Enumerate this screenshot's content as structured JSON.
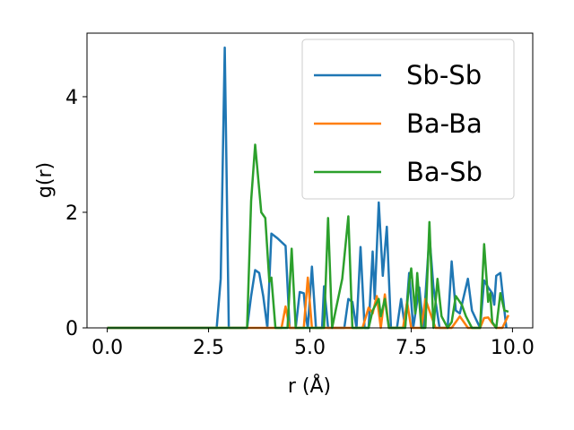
{
  "chart_data": {
    "type": "line",
    "xlabel": "r (Å)",
    "ylabel": "g(r)",
    "xlim": [
      -0.5,
      10.5
    ],
    "ylim": [
      0,
      5.1
    ],
    "xticks": [
      0.0,
      2.5,
      5.0,
      7.5,
      10.0
    ],
    "xtick_labels": [
      "0.0",
      "2.5",
      "5.0",
      "7.5",
      "10.0"
    ],
    "yticks": [
      0,
      2,
      4
    ],
    "ytick_labels": [
      "0",
      "2",
      "4"
    ],
    "grid": false,
    "legend_position": "top-right",
    "series": [
      {
        "name": "Sb-Sb",
        "color": "#1f77b4",
        "points": [
          [
            0.0,
            0
          ],
          [
            2.7,
            0
          ],
          [
            2.8,
            0.85
          ],
          [
            2.9,
            4.85
          ],
          [
            3.0,
            0
          ],
          [
            3.45,
            0
          ],
          [
            3.55,
            0.55
          ],
          [
            3.65,
            1.0
          ],
          [
            3.75,
            0.95
          ],
          [
            3.85,
            0.55
          ],
          [
            3.95,
            0
          ],
          [
            4.05,
            1.63
          ],
          [
            4.2,
            1.55
          ],
          [
            4.4,
            1.42
          ],
          [
            4.5,
            0
          ],
          [
            4.65,
            0
          ],
          [
            4.75,
            0.62
          ],
          [
            4.85,
            0.6
          ],
          [
            4.9,
            0.2
          ],
          [
            4.95,
            0
          ],
          [
            5.05,
            1.06
          ],
          [
            5.15,
            0
          ],
          [
            5.3,
            0
          ],
          [
            5.35,
            0.72
          ],
          [
            5.45,
            0
          ],
          [
            5.85,
            0
          ],
          [
            5.95,
            0.5
          ],
          [
            6.05,
            0.45
          ],
          [
            6.15,
            0
          ],
          [
            6.25,
            1.4
          ],
          [
            6.35,
            0
          ],
          [
            6.45,
            0
          ],
          [
            6.55,
            1.32
          ],
          [
            6.6,
            0.5
          ],
          [
            6.7,
            2.17
          ],
          [
            6.8,
            0.9
          ],
          [
            6.9,
            1.75
          ],
          [
            7.0,
            0
          ],
          [
            7.15,
            0
          ],
          [
            7.25,
            0.5
          ],
          [
            7.35,
            0
          ],
          [
            7.45,
            0.95
          ],
          [
            7.55,
            0
          ],
          [
            7.7,
            0.7
          ],
          [
            7.8,
            0
          ],
          [
            7.95,
            1.6
          ],
          [
            8.05,
            0.7
          ],
          [
            8.2,
            0
          ],
          [
            8.4,
            0
          ],
          [
            8.5,
            1.15
          ],
          [
            8.6,
            0.3
          ],
          [
            8.7,
            0.25
          ],
          [
            8.8,
            0.55
          ],
          [
            8.9,
            0.85
          ],
          [
            9.0,
            0.3
          ],
          [
            9.1,
            0.15
          ],
          [
            9.2,
            0
          ],
          [
            9.3,
            0.82
          ],
          [
            9.4,
            0.7
          ],
          [
            9.5,
            0.6
          ],
          [
            9.55,
            0.4
          ],
          [
            9.6,
            0.9
          ],
          [
            9.7,
            0.95
          ],
          [
            9.8,
            0.3
          ],
          [
            9.85,
            0
          ]
        ]
      },
      {
        "name": "Ba-Ba",
        "color": "#ff7f0e",
        "points": [
          [
            0.0,
            0
          ],
          [
            4.3,
            0
          ],
          [
            4.4,
            0.37
          ],
          [
            4.5,
            0
          ],
          [
            4.85,
            0
          ],
          [
            4.95,
            0.87
          ],
          [
            5.05,
            0
          ],
          [
            6.3,
            0
          ],
          [
            6.45,
            0.35
          ],
          [
            6.55,
            0.25
          ],
          [
            6.65,
            0.55
          ],
          [
            6.75,
            0
          ],
          [
            6.85,
            0.58
          ],
          [
            6.95,
            0
          ],
          [
            7.3,
            0
          ],
          [
            7.4,
            0.45
          ],
          [
            7.5,
            0
          ],
          [
            7.75,
            0
          ],
          [
            7.85,
            0.5
          ],
          [
            8.0,
            0.2
          ],
          [
            8.1,
            0
          ],
          [
            8.5,
            0
          ],
          [
            8.6,
            0.1
          ],
          [
            8.7,
            0.2
          ],
          [
            8.9,
            0
          ],
          [
            9.2,
            0
          ],
          [
            9.3,
            0.17
          ],
          [
            9.4,
            0.18
          ],
          [
            9.5,
            0.08
          ],
          [
            9.6,
            0
          ],
          [
            9.75,
            0
          ],
          [
            9.9,
            0.22
          ]
        ]
      },
      {
        "name": "Ba-Sb",
        "color": "#2ca02c",
        "points": [
          [
            0.0,
            0
          ],
          [
            3.45,
            0
          ],
          [
            3.55,
            2.2
          ],
          [
            3.65,
            3.17
          ],
          [
            3.8,
            2.0
          ],
          [
            3.9,
            1.9
          ],
          [
            4.0,
            0.8
          ],
          [
            4.05,
            0.87
          ],
          [
            4.15,
            0
          ],
          [
            4.45,
            0
          ],
          [
            4.55,
            1.37
          ],
          [
            4.65,
            0
          ],
          [
            5.35,
            0
          ],
          [
            5.45,
            1.9
          ],
          [
            5.55,
            0
          ],
          [
            5.65,
            0.35
          ],
          [
            5.8,
            0.85
          ],
          [
            5.95,
            1.93
          ],
          [
            6.05,
            0
          ],
          [
            6.45,
            0
          ],
          [
            6.55,
            0.3
          ],
          [
            6.7,
            0.5
          ],
          [
            6.75,
            0.2
          ],
          [
            6.85,
            0.5
          ],
          [
            6.95,
            0
          ],
          [
            7.35,
            0
          ],
          [
            7.45,
            0.78
          ],
          [
            7.5,
            1.03
          ],
          [
            7.6,
            0.25
          ],
          [
            7.65,
            0.95
          ],
          [
            7.75,
            0
          ],
          [
            7.85,
            0
          ],
          [
            7.95,
            1.83
          ],
          [
            8.05,
            0
          ],
          [
            8.15,
            0.85
          ],
          [
            8.25,
            0.2
          ],
          [
            8.4,
            0
          ],
          [
            8.5,
            0.1
          ],
          [
            8.6,
            0.55
          ],
          [
            8.75,
            0.4
          ],
          [
            8.85,
            0.2
          ],
          [
            9.0,
            0
          ],
          [
            9.2,
            0
          ],
          [
            9.3,
            1.45
          ],
          [
            9.4,
            0.45
          ],
          [
            9.45,
            0.6
          ],
          [
            9.5,
            0.1
          ],
          [
            9.6,
            0
          ],
          [
            9.7,
            0.6
          ],
          [
            9.8,
            0.3
          ],
          [
            9.9,
            0.28
          ]
        ]
      }
    ]
  }
}
